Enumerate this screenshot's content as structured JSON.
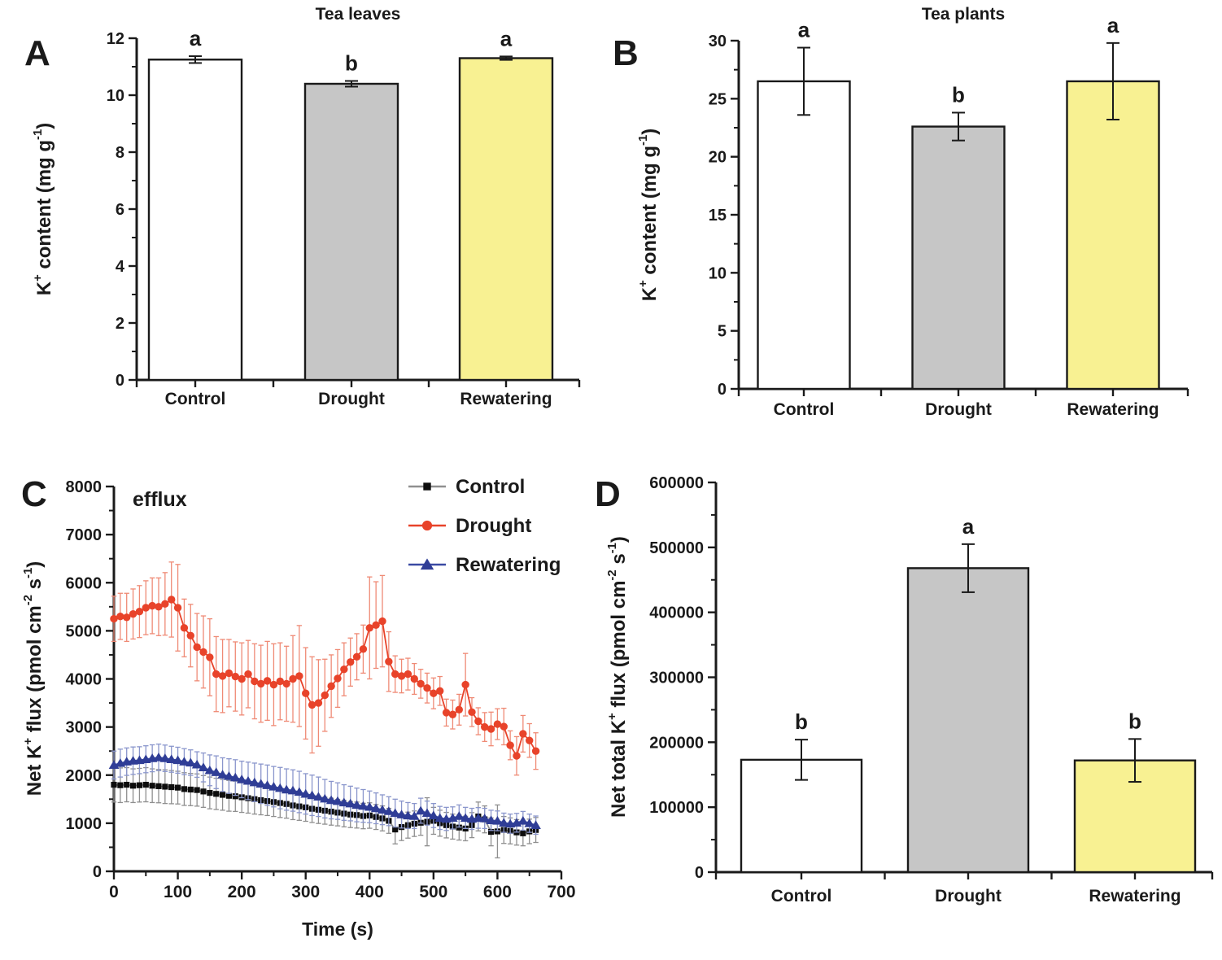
{
  "figure_background": "#ffffff",
  "axis_color": "#1a1a1a",
  "chart_data": [
    {
      "panel": "A",
      "type": "bar",
      "title": "Tea leaves",
      "ylabel": "K+ content (mg g-1)",
      "ylabel_rich": [
        {
          "t": "K"
        },
        {
          "t": "+",
          "sup": true
        },
        {
          "t": " content (mg g"
        },
        {
          "t": "-1",
          "sup": true
        },
        {
          "t": ")"
        }
      ],
      "categories": [
        "Control",
        "Drought",
        "Rewatering"
      ],
      "values": [
        11.25,
        10.4,
        11.3
      ],
      "errors": [
        0.12,
        0.1,
        0.06
      ],
      "sig_letters": [
        "a",
        "b",
        "a"
      ],
      "bar_colors": [
        "#ffffff",
        "#c6c6c6",
        "#f8f192"
      ],
      "bar_edge_color": "#1a1a1a",
      "ylim": [
        0,
        12
      ],
      "yticks": [
        0,
        2,
        4,
        6,
        8,
        10,
        12
      ],
      "yminor_step": 1,
      "grid": false
    },
    {
      "panel": "B",
      "type": "bar",
      "title": "Tea plants",
      "ylabel": "K+ content (mg g-1)",
      "ylabel_rich": [
        {
          "t": "K"
        },
        {
          "t": "+",
          "sup": true
        },
        {
          "t": " content (mg g"
        },
        {
          "t": "-1",
          "sup": true
        },
        {
          "t": ")"
        }
      ],
      "categories": [
        "Control",
        "Drought",
        "Rewatering"
      ],
      "values": [
        26.5,
        22.6,
        26.5
      ],
      "errors": [
        2.9,
        1.2,
        3.3
      ],
      "sig_letters": [
        "a",
        "b",
        "a"
      ],
      "bar_colors": [
        "#ffffff",
        "#c6c6c6",
        "#f8f192"
      ],
      "bar_edge_color": "#1a1a1a",
      "ylim": [
        0,
        30
      ],
      "yticks": [
        0,
        5,
        10,
        15,
        20,
        25,
        30
      ],
      "yminor_step": 2.5,
      "grid": false
    },
    {
      "panel": "C",
      "type": "line",
      "annotation": "efflux",
      "xlabel": "Time (s)",
      "ylabel": "Net K+ flux (pmol cm-2 s-1)",
      "ylabel_rich": [
        {
          "t": "Net K"
        },
        {
          "t": "+",
          "sup": true
        },
        {
          "t": " flux (pmol cm"
        },
        {
          "t": "-2",
          "sup": true
        },
        {
          "t": " s"
        },
        {
          "t": "-1",
          "sup": true
        },
        {
          "t": ")"
        }
      ],
      "xlim": [
        0,
        700
      ],
      "xticks": [
        0,
        100,
        200,
        300,
        400,
        500,
        600,
        700
      ],
      "xminor_step": 50,
      "ylim": [
        0,
        8000
      ],
      "yticks": [
        0,
        1000,
        2000,
        3000,
        4000,
        5000,
        6000,
        7000,
        8000
      ],
      "yminor_step": 500,
      "legend_position": "top-right",
      "grid": false,
      "x": [
        0,
        10,
        20,
        30,
        40,
        50,
        60,
        70,
        80,
        90,
        100,
        110,
        120,
        130,
        140,
        150,
        160,
        170,
        180,
        190,
        200,
        210,
        220,
        230,
        240,
        250,
        260,
        270,
        280,
        290,
        300,
        310,
        320,
        330,
        340,
        350,
        360,
        370,
        380,
        390,
        400,
        410,
        420,
        430,
        440,
        450,
        460,
        470,
        480,
        490,
        500,
        510,
        520,
        530,
        540,
        550,
        560,
        570,
        580,
        590,
        600,
        610,
        620,
        630,
        640,
        650,
        660
      ],
      "series": [
        {
          "name": "Control",
          "marker": "square",
          "marker_color": "#0d0d0d",
          "line_color": "#8f8f8f",
          "err_color": "#8f8f8f",
          "y": [
            1800,
            1790,
            1800,
            1780,
            1790,
            1800,
            1780,
            1770,
            1760,
            1750,
            1740,
            1710,
            1700,
            1690,
            1660,
            1630,
            1610,
            1590,
            1570,
            1560,
            1540,
            1520,
            1500,
            1480,
            1460,
            1440,
            1420,
            1400,
            1370,
            1350,
            1330,
            1300,
            1280,
            1260,
            1240,
            1220,
            1200,
            1180,
            1170,
            1150,
            1160,
            1130,
            1100,
            1050,
            870,
            920,
            960,
            990,
            1010,
            1030,
            1050,
            1000,
            960,
            930,
            910,
            890,
            960,
            1140,
            1080,
            820,
            830,
            860,
            840,
            810,
            790,
            830,
            860
          ],
          "err": [
            360,
            360,
            355,
            350,
            350,
            355,
            350,
            345,
            350,
            345,
            340,
            340,
            335,
            335,
            330,
            330,
            325,
            320,
            320,
            315,
            315,
            310,
            310,
            305,
            300,
            300,
            300,
            295,
            295,
            290,
            290,
            285,
            285,
            280,
            280,
            275,
            275,
            270,
            270,
            265,
            265,
            260,
            260,
            260,
            300,
            280,
            270,
            265,
            260,
            500,
            280,
            270,
            265,
            260,
            260,
            255,
            260,
            300,
            280,
            290,
            550,
            280,
            270,
            265,
            260,
            255,
            260
          ]
        },
        {
          "name": "Drought",
          "marker": "circle",
          "marker_color": "#e8432a",
          "line_color": "#e8432a",
          "err_color": "#ef8a75",
          "y": [
            5250,
            5300,
            5280,
            5350,
            5400,
            5480,
            5520,
            5500,
            5560,
            5650,
            5480,
            5060,
            4900,
            4660,
            4560,
            4450,
            4100,
            4060,
            4120,
            4050,
            4000,
            4100,
            3950,
            3900,
            3960,
            3880,
            3950,
            3900,
            4000,
            4060,
            3700,
            3460,
            3500,
            3660,
            3850,
            4010,
            4200,
            4350,
            4460,
            4620,
            5060,
            5120,
            5200,
            4360,
            4100,
            4060,
            4100,
            4000,
            3900,
            3810,
            3700,
            3750,
            3300,
            3260,
            3360,
            3880,
            3310,
            3120,
            3000,
            2960,
            3060,
            3010,
            2620,
            2400,
            2860,
            2720,
            2500
          ],
          "err": [
            470,
            480,
            500,
            520,
            540,
            560,
            580,
            600,
            650,
            780,
            900,
            600,
            650,
            700,
            750,
            800,
            780,
            760,
            700,
            720,
            750,
            700,
            780,
            800,
            820,
            850,
            800,
            780,
            900,
            1050,
            950,
            1000,
            900,
            750,
            650,
            600,
            550,
            500,
            480,
            500,
            1060,
            900,
            950,
            620,
            380,
            350,
            330,
            320,
            300,
            310,
            320,
            300,
            280,
            300,
            320,
            650,
            300,
            280,
            300,
            350,
            320,
            380,
            300,
            400,
            380,
            350,
            380
          ]
        },
        {
          "name": "Rewatering",
          "marker": "triangle",
          "marker_color": "#2f3d96",
          "line_color": "#3a4aa3",
          "err_color": "#8a96cc",
          "y": [
            2210,
            2250,
            2280,
            2300,
            2310,
            2330,
            2350,
            2370,
            2350,
            2330,
            2310,
            2280,
            2260,
            2220,
            2160,
            2100,
            2060,
            2010,
            1980,
            1950,
            1910,
            1880,
            1850,
            1820,
            1790,
            1760,
            1730,
            1700,
            1680,
            1650,
            1610,
            1580,
            1550,
            1510,
            1480,
            1460,
            1430,
            1410,
            1380,
            1360,
            1340,
            1310,
            1280,
            1250,
            1210,
            1180,
            1160,
            1150,
            1260,
            1210,
            1160,
            1110,
            1090,
            1110,
            1150,
            1110,
            1090,
            1110,
            1100,
            1060,
            1050,
            1010,
            990,
            1010,
            1050,
            1000,
            960
          ],
          "err": [
            290,
            290,
            285,
            285,
            280,
            280,
            280,
            275,
            275,
            270,
            270,
            270,
            265,
            265,
            300,
            320,
            340,
            350,
            360,
            370,
            380,
            390,
            400,
            410,
            420,
            420,
            430,
            430,
            430,
            430,
            420,
            420,
            410,
            400,
            390,
            380,
            370,
            360,
            350,
            340,
            330,
            320,
            310,
            300,
            290,
            280,
            270,
            260,
            260,
            250,
            250,
            240,
            240,
            230,
            230,
            220,
            220,
            215,
            210,
            210,
            205,
            200,
            200,
            195,
            195,
            190,
            190
          ]
        }
      ]
    },
    {
      "panel": "D",
      "type": "bar",
      "title": "",
      "ylabel": "Net total K+ flux (pmol cm-2 s-1)",
      "ylabel_rich": [
        {
          "t": "Net total K"
        },
        {
          "t": "+",
          "sup": true
        },
        {
          "t": " flux (pmol cm"
        },
        {
          "t": "-2",
          "sup": true
        },
        {
          "t": " s"
        },
        {
          "t": "-1",
          "sup": true
        },
        {
          "t": ")"
        }
      ],
      "categories": [
        "Control",
        "Drought",
        "Rewatering"
      ],
      "values": [
        173000,
        468000,
        172000
      ],
      "errors": [
        31000,
        37000,
        33000
      ],
      "sig_letters": [
        "b",
        "a",
        "b"
      ],
      "bar_colors": [
        "#ffffff",
        "#c6c6c6",
        "#f8f192"
      ],
      "bar_edge_color": "#1a1a1a",
      "ylim": [
        0,
        600000
      ],
      "yticks": [
        0,
        100000,
        200000,
        300000,
        400000,
        500000,
        600000
      ],
      "yminor_step": 50000,
      "grid": false
    }
  ]
}
